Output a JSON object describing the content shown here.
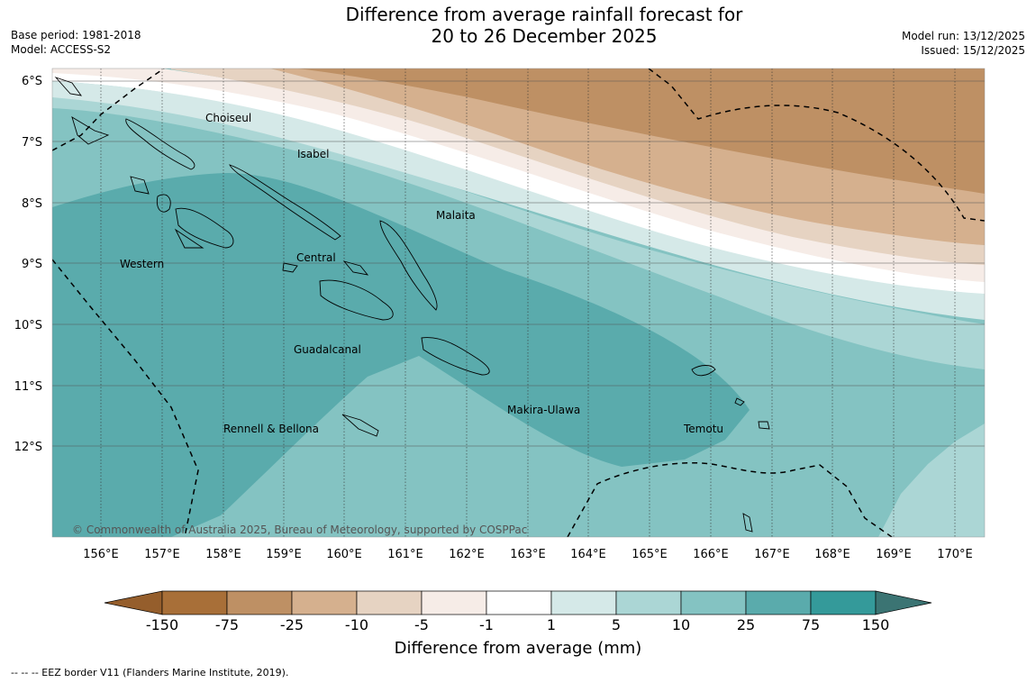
{
  "title": {
    "line1": "Difference from average rainfall forecast for",
    "line2": "20 to 26 December 2025"
  },
  "meta": {
    "base_period": "Base period: 1981-2018",
    "model": "Model: ACCESS-S2",
    "model_run": "Model run: 13/12/2025",
    "issued": "Issued: 15/12/2025"
  },
  "map": {
    "lon_ticks": [
      "156°E",
      "157°E",
      "158°E",
      "159°E",
      "160°E",
      "161°E",
      "162°E",
      "163°E",
      "164°E",
      "165°E",
      "166°E",
      "167°E",
      "168°E",
      "169°E",
      "170°E"
    ],
    "lat_ticks": [
      "6°S",
      "7°S",
      "8°S",
      "9°S",
      "10°S",
      "11°S",
      "12°S"
    ],
    "region_labels": [
      "Choiseul",
      "Isabel",
      "Malaita",
      "Western",
      "Central",
      "Guadalcanal",
      "Makira-Ulawa",
      "Rennell & Bellona",
      "Temotu"
    ],
    "copyright": "© Commonwealth of Australia 2025, Bureau of Meteorology, supported by COSPPac"
  },
  "colorbar": {
    "ticks": [
      "-150",
      "-75",
      "-25",
      "-10",
      "-5",
      "-1",
      "1",
      "5",
      "10",
      "25",
      "75",
      "150"
    ],
    "colors": [
      "#a86f38",
      "#be9064",
      "#d5b08e",
      "#e6d3c2",
      "#f6ece7",
      "#ffffff",
      "#d5e9e8",
      "#abd6d5",
      "#84c3c2",
      "#5aabac",
      "#349a9a",
      "#3b7473"
    ],
    "title": "Difference from average (mm)"
  },
  "footer": "--  --  -- EEZ border V11 (Flanders Marine Institute, 2019)."
}
